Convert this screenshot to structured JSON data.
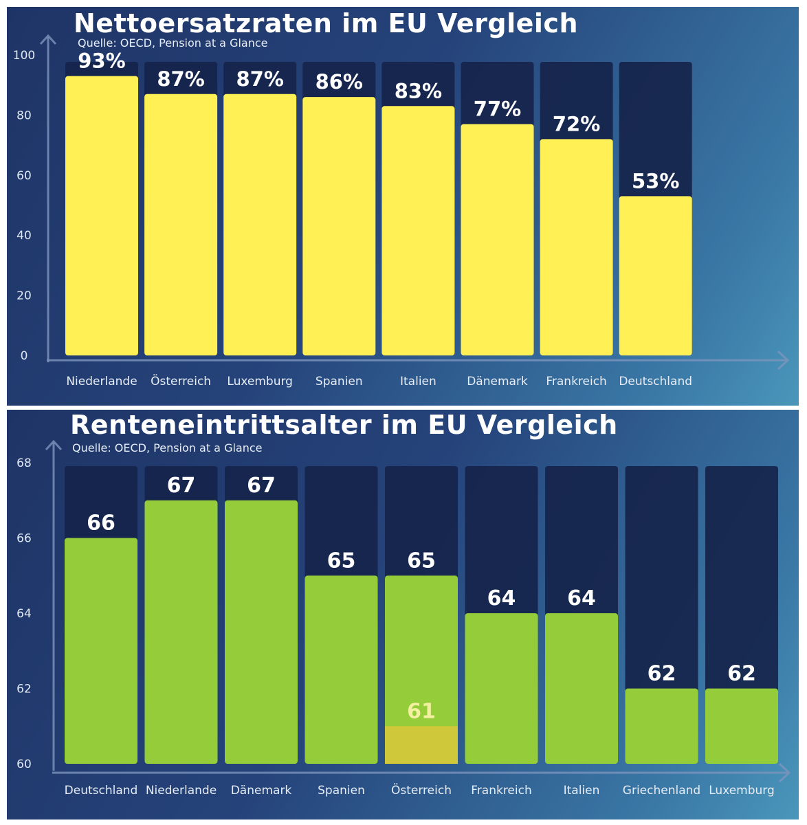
{
  "chart_data": [
    {
      "type": "bar",
      "title": "Nettoersatzraten im EU Vergleich",
      "subtitle": "Quelle: OECD, Pension at a Glance",
      "categories": [
        "Niederlande",
        "Österreich",
        "Luxemburg",
        "Spanien",
        "Italien",
        "Dänemark",
        "Frankreich",
        "Deutschland"
      ],
      "values": [
        93,
        87,
        87,
        86,
        83,
        77,
        72,
        53
      ],
      "data_labels": [
        "93%",
        "87%",
        "87%",
        "86%",
        "83%",
        "77%",
        "72%",
        "53%"
      ],
      "ylim": [
        0,
        100
      ],
      "yticks": [
        0,
        20,
        40,
        60,
        80,
        100
      ],
      "ytick_labels": [
        "0",
        "20",
        "40",
        "60",
        "80",
        "100"
      ],
      "xlabel": "",
      "ylabel": "",
      "bar_color": "#fff056",
      "grid": false
    },
    {
      "type": "bar",
      "title": "Renteneintrittsalter im EU Vergleich",
      "subtitle": "Quelle: OECD, Pension at a Glance",
      "categories": [
        "Deutschland",
        "Niederlande",
        "Dänemark",
        "Spanien",
        "Österreich",
        "Frankreich",
        "Italien",
        "Griechenland",
        "Luxemburg"
      ],
      "values": [
        66,
        67,
        67,
        65,
        65,
        64,
        64,
        62,
        62
      ],
      "data_labels": [
        "66",
        "67",
        "67",
        "65",
        "65",
        "64",
        "64",
        "62",
        "62"
      ],
      "ylim": [
        60,
        68
      ],
      "yticks": [
        60,
        62,
        64,
        66,
        68
      ],
      "ytick_labels": [
        "60",
        "62",
        "64",
        "66",
        "68"
      ],
      "xlabel": "",
      "ylabel": "",
      "bar_color": "#94cc3a",
      "grid": false,
      "annotations": [
        {
          "category": "Österreich",
          "value": 61,
          "label": "61",
          "color": "#cfc83a"
        }
      ]
    }
  ]
}
